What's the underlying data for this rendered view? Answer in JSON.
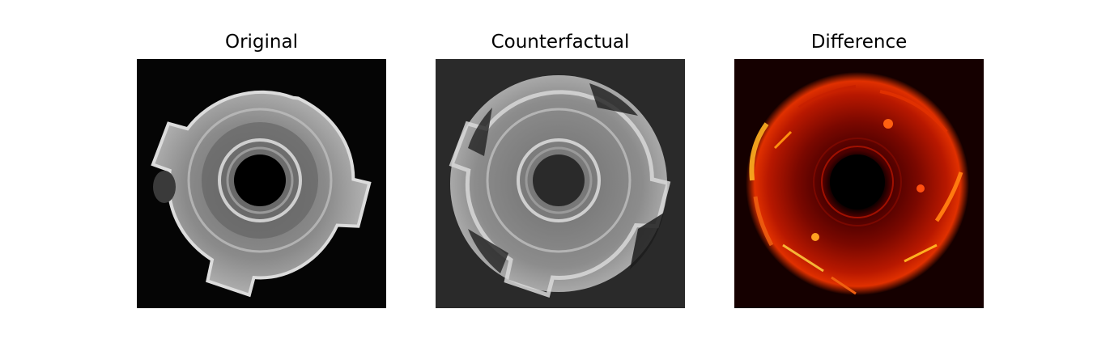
{
  "panels": [
    {
      "title": "Original",
      "image": "grayscale photo of a four-pronged metal nut on black background"
    },
    {
      "title": "Counterfactual",
      "image": "grayscale reconstruction of the nut as a round disc on gray background"
    },
    {
      "title": "Difference",
      "image": "red-yellow heatmap of the difference on black background"
    }
  ],
  "colors": {
    "original_bg": "#050505",
    "counterfactual_bg": "#2a2a2a",
    "difference_bg": "#150000",
    "heat_low": "#6a0000",
    "heat_mid": "#e03000",
    "heat_high": "#ffd040"
  }
}
